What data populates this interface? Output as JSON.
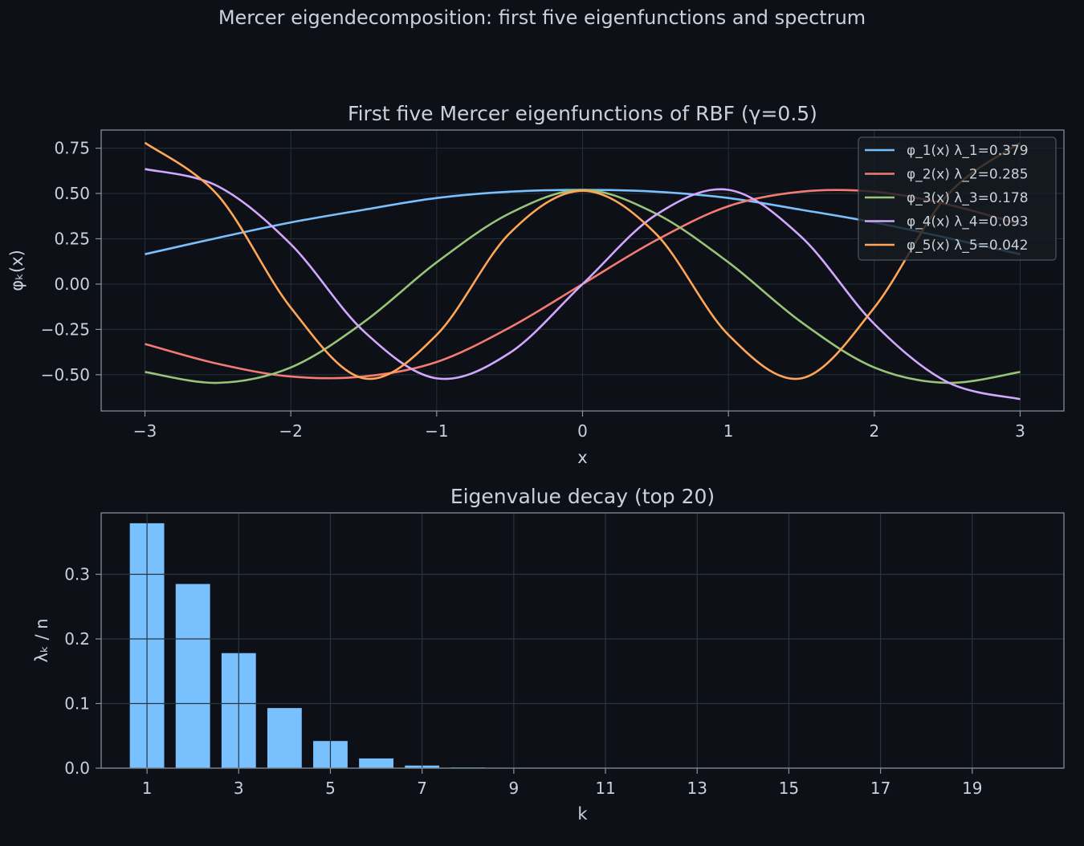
{
  "suptitle": "Mercer eigendecomposition: first five eigenfunctions and spectrum",
  "colors": {
    "background": "#0d1117",
    "grid": "#263039",
    "spine": "#8b949e",
    "text": "#c9d1d9",
    "bar": "#79c0ff",
    "series": [
      "#79c0ff",
      "#f47b72",
      "#98c379",
      "#d2a8ff",
      "#ffa657"
    ]
  },
  "chart_data": [
    {
      "type": "line",
      "title": "First five Mercer eigenfunctions of RBF (γ=0.5)",
      "xlabel": "x",
      "ylabel": "φₖ(x)",
      "xlim": [
        -3.3,
        3.3
      ],
      "ylim": [
        -0.7,
        0.85
      ],
      "xticks": [
        -3,
        -2,
        -1,
        0,
        1,
        2,
        3
      ],
      "xtick_labels": [
        "−3",
        "−2",
        "−1",
        "0",
        "1",
        "2",
        "3"
      ],
      "yticks": [
        0.75,
        0.5,
        0.25,
        0.0,
        -0.25,
        -0.5
      ],
      "ytick_labels": [
        "0.75",
        "0.50",
        "0.25",
        "0.00",
        "−0.25",
        "−0.50"
      ],
      "grid": true,
      "legend_position": "top-right",
      "x": [
        -3.0,
        -2.5,
        -2.0,
        -1.5,
        -1.0,
        -0.5,
        0.0,
        0.5,
        1.0,
        1.5,
        2.0,
        2.5,
        3.0
      ],
      "series": [
        {
          "name": "φ_1(x)   λ_1=0.379",
          "values": [
            0.165,
            0.255,
            0.34,
            0.41,
            0.475,
            0.51,
            0.52,
            0.51,
            0.475,
            0.41,
            0.34,
            0.255,
            0.165
          ]
        },
        {
          "name": "φ_2(x)   λ_2=0.285",
          "values": [
            -0.33,
            -0.44,
            -0.51,
            -0.51,
            -0.43,
            -0.24,
            0.0,
            0.24,
            0.43,
            0.51,
            0.51,
            0.44,
            0.33
          ]
        },
        {
          "name": "φ_3(x)   λ_3=0.178",
          "values": [
            -0.485,
            -0.545,
            -0.46,
            -0.21,
            0.12,
            0.39,
            0.52,
            0.39,
            0.12,
            -0.21,
            -0.46,
            -0.545,
            -0.485
          ]
        },
        {
          "name": "φ_4(x)   λ_4=0.093",
          "values": [
            0.635,
            0.54,
            0.22,
            -0.26,
            -0.52,
            -0.38,
            0.0,
            0.38,
            0.52,
            0.26,
            -0.22,
            -0.54,
            -0.635
          ]
        },
        {
          "name": "φ_5(x)   λ_5=0.042",
          "values": [
            0.78,
            0.49,
            -0.13,
            -0.52,
            -0.28,
            0.28,
            0.515,
            0.28,
            -0.28,
            -0.52,
            -0.13,
            0.49,
            0.78
          ]
        }
      ]
    },
    {
      "type": "bar",
      "title": "Eigenvalue decay (top 20)",
      "xlabel": "k",
      "ylabel": "λₖ / n",
      "xlim": [
        0,
        21
      ],
      "ylim": [
        0,
        0.395
      ],
      "xticks": [
        1,
        3,
        5,
        7,
        9,
        11,
        13,
        15,
        17,
        19
      ],
      "xtick_labels": [
        "1",
        "3",
        "5",
        "7",
        "9",
        "11",
        "13",
        "15",
        "17",
        "19"
      ],
      "yticks": [
        0.0,
        0.1,
        0.2,
        0.3
      ],
      "ytick_labels": [
        "0.0",
        "0.1",
        "0.2",
        "0.3"
      ],
      "grid": true,
      "categories": [
        1,
        2,
        3,
        4,
        5,
        6,
        7,
        8,
        9,
        10,
        11,
        12,
        13,
        14,
        15,
        16,
        17,
        18,
        19,
        20
      ],
      "values": [
        0.379,
        0.285,
        0.178,
        0.093,
        0.042,
        0.015,
        0.004,
        0.001,
        0.0003,
        0.0001,
        0,
        0,
        0,
        0,
        0,
        0,
        0,
        0,
        0,
        0
      ]
    }
  ]
}
